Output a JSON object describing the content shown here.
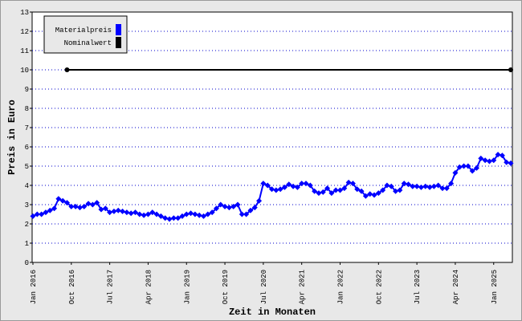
{
  "chart_data": {
    "type": "line",
    "y_label": "Preis in Euro",
    "x_label": "Zeit in Monaten",
    "categories": [
      "Jan 2016",
      null,
      null,
      null,
      null,
      null,
      null,
      null,
      null,
      "Oct 2016",
      null,
      null,
      null,
      null,
      null,
      null,
      null,
      null,
      "Jul 2017",
      null,
      null,
      null,
      null,
      null,
      null,
      null,
      null,
      "Apr 2018",
      null,
      null,
      null,
      null,
      null,
      null,
      null,
      null,
      "Jan 2019",
      null,
      null,
      null,
      null,
      null,
      null,
      null,
      null,
      "Oct 2019",
      null,
      null,
      null,
      null,
      null,
      null,
      null,
      null,
      "Jul 2020",
      null,
      null,
      null,
      null,
      null,
      null,
      null,
      null,
      "Apr 2021",
      null,
      null,
      null,
      null,
      null,
      null,
      null,
      null,
      "Jan 2022",
      null,
      null,
      null,
      null,
      null,
      null,
      null,
      null,
      "Oct 2022",
      null,
      null,
      null,
      null,
      null,
      null,
      null,
      null,
      "Jul 2023",
      null,
      null,
      null,
      null,
      null,
      null,
      null,
      null,
      "Apr 2024",
      null,
      null,
      null,
      null,
      null,
      null,
      null,
      null,
      "Jan 2025",
      null,
      null,
      null,
      null
    ],
    "series": [
      {
        "name": "Materialpreis",
        "color": "#0000ff",
        "values": [
          2.4,
          2.5,
          2.5,
          2.6,
          2.7,
          2.8,
          3.3,
          3.2,
          3.1,
          2.9,
          2.9,
          2.85,
          2.9,
          3.05,
          3.0,
          3.1,
          2.75,
          2.8,
          2.6,
          2.65,
          2.7,
          2.65,
          2.6,
          2.55,
          2.6,
          2.5,
          2.45,
          2.5,
          2.6,
          2.5,
          2.4,
          2.3,
          2.25,
          2.3,
          2.3,
          2.4,
          2.5,
          2.55,
          2.5,
          2.45,
          2.4,
          2.5,
          2.6,
          2.8,
          3.0,
          2.9,
          2.85,
          2.9,
          3.0,
          2.5,
          2.5,
          2.7,
          2.85,
          3.2,
          4.1,
          4.0,
          3.8,
          3.75,
          3.8,
          3.9,
          4.05,
          3.95,
          3.9,
          4.1,
          4.1,
          4.0,
          3.7,
          3.6,
          3.65,
          3.85,
          3.6,
          3.75,
          3.75,
          3.85,
          4.15,
          4.1,
          3.8,
          3.7,
          3.45,
          3.55,
          3.5,
          3.6,
          3.75,
          4.0,
          3.95,
          3.7,
          3.75,
          4.1,
          4.05,
          3.95,
          3.95,
          3.9,
          3.95,
          3.9,
          3.95,
          4.0,
          3.85,
          3.85,
          4.1,
          4.65,
          4.95,
          5.0,
          5.0,
          4.75,
          4.9,
          5.4,
          5.3,
          5.25,
          5.3,
          5.6,
          5.55,
          5.2,
          5.15
        ]
      },
      {
        "name": "Nominalwert",
        "color": "#000000",
        "values": [
          null,
          null,
          null,
          null,
          null,
          null,
          null,
          null,
          10,
          10,
          10,
          10,
          10,
          10,
          10,
          10,
          10,
          10,
          10,
          10,
          10,
          10,
          10,
          10,
          10,
          10,
          10,
          10,
          10,
          10,
          10,
          10,
          10,
          10,
          10,
          10,
          10,
          10,
          10,
          10,
          10,
          10,
          10,
          10,
          10,
          10,
          10,
          10,
          10,
          10,
          10,
          10,
          10,
          10,
          10,
          10,
          10,
          10,
          10,
          10,
          10,
          10,
          10,
          10,
          10,
          10,
          10,
          10,
          10,
          10,
          10,
          10,
          10,
          10,
          10,
          10,
          10,
          10,
          10,
          10,
          10,
          10,
          10,
          10,
          10,
          10,
          10,
          10,
          10,
          10,
          10,
          10,
          10,
          10,
          10,
          10,
          10,
          10,
          10,
          10,
          10,
          10,
          10,
          10,
          10,
          10,
          10,
          10,
          10,
          10,
          10,
          10,
          10
        ]
      }
    ],
    "ylim": [
      0,
      13
    ],
    "yticks": [
      0,
      1,
      2,
      3,
      4,
      5,
      6,
      7,
      8,
      9,
      10,
      11,
      12,
      13
    ],
    "grid": true,
    "legend": "top-left"
  }
}
